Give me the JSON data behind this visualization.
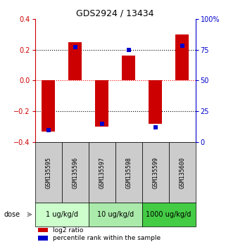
{
  "title": "GDS2924 / 13434",
  "samples": [
    "GSM135595",
    "GSM135596",
    "GSM135597",
    "GSM135598",
    "GSM135599",
    "GSM135600"
  ],
  "log2_ratio": [
    -0.33,
    0.25,
    -0.3,
    0.16,
    -0.28,
    0.3
  ],
  "percentile_rank": [
    10,
    77,
    15,
    75,
    12,
    78
  ],
  "left_ylim": [
    -0.4,
    0.4
  ],
  "right_ylim": [
    0,
    100
  ],
  "left_yticks": [
    -0.4,
    -0.2,
    0,
    0.2,
    0.4
  ],
  "right_yticks": [
    0,
    25,
    50,
    75,
    100
  ],
  "right_yticklabels": [
    "0",
    "25",
    "50",
    "75",
    "100%"
  ],
  "hlines": [
    -0.2,
    0.0,
    0.2
  ],
  "hline_colors": [
    "black",
    "red",
    "black"
  ],
  "hline_styles": [
    "dotted",
    "dotted",
    "dotted"
  ],
  "bar_color": "#CC0000",
  "dot_color": "#0000CC",
  "bar_width": 0.5,
  "dot_size": 5,
  "dose_groups": [
    {
      "label": "1 ug/kg/d",
      "samples": [
        0,
        1
      ],
      "color": "#ccffcc"
    },
    {
      "label": "10 ug/kg/d",
      "samples": [
        2,
        3
      ],
      "color": "#aaeaaa"
    },
    {
      "label": "1000 ug/kg/d",
      "samples": [
        4,
        5
      ],
      "color": "#44cc44"
    }
  ],
  "sample_box_color": "#cccccc",
  "legend_red_label": "log2 ratio",
  "legend_blue_label": "percentile rank within the sample",
  "dose_label": "dose",
  "left_axis_color": "#CC0000",
  "right_axis_color": "#0000CC",
  "background_color": "#ffffff"
}
